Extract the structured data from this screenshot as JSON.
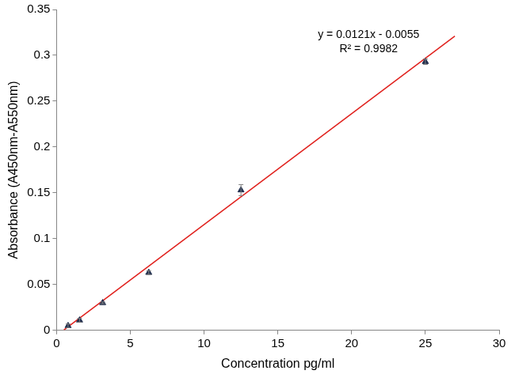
{
  "chart_data": {
    "type": "scatter",
    "x_label": "Concentration pg/ml",
    "y_label": "Absorbance (A450nm-A550nm)",
    "annotations": [
      "y = 0.0121x - 0.0055",
      "R² = 0.9982"
    ],
    "xlim": [
      0,
      30
    ],
    "xticks": [
      0,
      5,
      10,
      15,
      20,
      25,
      30
    ],
    "ylim": [
      0,
      0.35
    ],
    "yticks": [
      0,
      0.05,
      0.1,
      0.15,
      0.2,
      0.25,
      0.3,
      0.35
    ],
    "grid": false,
    "series": [
      {
        "type": "scatter",
        "marker": "triangle",
        "color": "#1f2d4d",
        "x": [
          0.78,
          1.56,
          3.125,
          6.25,
          12.5,
          25
        ],
        "values": [
          0.005,
          0.011,
          0.03,
          0.063,
          0.153,
          0.293
        ],
        "errors": [
          0.002,
          0.002,
          0.001,
          0.002,
          0.006,
          0.003
        ]
      },
      {
        "type": "line",
        "line_style": "solid",
        "color": "#e0201c",
        "x": [
          0.5,
          27
        ],
        "values": [
          0.0006,
          0.321
        ]
      }
    ]
  }
}
